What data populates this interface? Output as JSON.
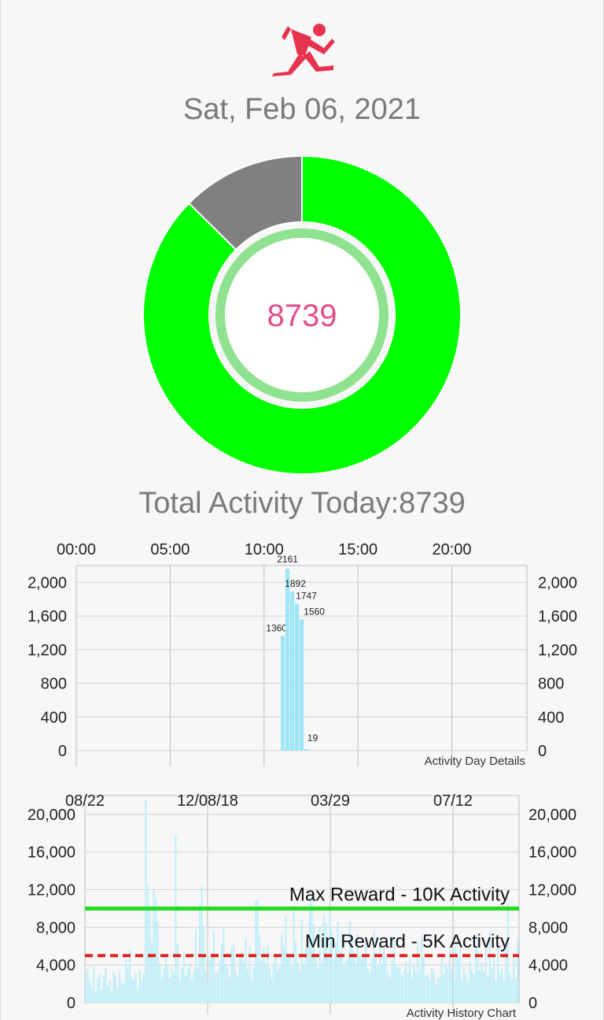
{
  "header": {
    "icon": "runner-icon",
    "date": "Sat, Feb 06, 2021"
  },
  "summary": {
    "steps_today": "8739",
    "total_label": "Total Activity Today:8739",
    "goal_progress_fraction": 0.874,
    "colors": {
      "progress": "#00ff00",
      "remaining": "#808080",
      "value_text": "#e0508a",
      "inner_ring": "#7dde7d"
    }
  },
  "chart_data": [
    {
      "type": "bar",
      "title": "Activity Day Details",
      "x_ticks": [
        "00:00",
        "05:00",
        "10:00",
        "15:00",
        "20:00"
      ],
      "x_tick_hours": [
        0,
        5,
        10,
        15,
        20
      ],
      "xlim": [
        0,
        24
      ],
      "ylim": [
        0,
        2200
      ],
      "y_ticks": [
        0,
        400,
        800,
        1200,
        1600,
        2000
      ],
      "y_tick_labels": [
        "0",
        "400",
        "800",
        "1,200",
        "1,600",
        "2,000"
      ],
      "grid": true,
      "bar_color": "#9ee6f5",
      "bars": [
        {
          "hour": 11.0,
          "value": 1360,
          "label": "1360"
        },
        {
          "hour": 11.25,
          "value": 2161,
          "label": "2161"
        },
        {
          "hour": 11.5,
          "value": 1892,
          "label": "1892"
        },
        {
          "hour": 11.75,
          "value": 1747,
          "label": "1747"
        },
        {
          "hour": 12.0,
          "value": 1560,
          "label": "1560"
        },
        {
          "hour": 12.25,
          "value": 19,
          "label": "19"
        }
      ]
    },
    {
      "type": "bar",
      "title": "Activity History Chart",
      "x_ticks": [
        "08/22",
        "12/08/18",
        "03/29",
        "07/12"
      ],
      "ylim": [
        0,
        22000
      ],
      "y_ticks": [
        0,
        4000,
        8000,
        12000,
        16000,
        20000
      ],
      "y_tick_labels": [
        "0",
        "4,000",
        "8,000",
        "12,000",
        "16,000",
        "20,000"
      ],
      "grid": true,
      "bar_color": "#bfeef8",
      "reference_lines": [
        {
          "label": "Max Reward - 10K Activity",
          "value": 10000,
          "color": "#22dd22",
          "style": "solid"
        },
        {
          "label": "Min Reward - 5K Activity",
          "value": 5000,
          "color": "#dd2222",
          "style": "dashed"
        }
      ],
      "values": [
        3200,
        3600,
        2400,
        1500,
        3800,
        1200,
        2600,
        3100,
        1400,
        2900,
        3700,
        1800,
        2500,
        1200,
        3300,
        2800,
        1600,
        3500,
        2200,
        1900,
        4600,
        3800,
        5600,
        2700,
        2400,
        3100,
        1500,
        3500,
        2300,
        3100,
        21500,
        12500,
        9800,
        6400,
        11900,
        11200,
        8600,
        4200,
        2700,
        3600,
        4800,
        3900,
        2600,
        3800,
        3100,
        17800,
        6200,
        2300,
        3700,
        5400,
        2900,
        3600,
        4200,
        2500,
        3300,
        7800,
        3700,
        10400,
        12500,
        8100,
        3400,
        2200,
        4600,
        5300,
        7600,
        3100,
        3200,
        4400,
        6300,
        7900,
        4100,
        3700,
        2700,
        5900,
        6200,
        3300,
        2900,
        4700,
        5500,
        4300,
        6800,
        3500,
        6000,
        2400,
        3800,
        10800,
        11000,
        7200,
        4400,
        5900,
        4200,
        6100,
        3700,
        2600,
        4300,
        5000,
        3400,
        3900,
        7400,
        5900,
        9100,
        4700,
        5000,
        3800,
        10300,
        6600,
        4300,
        3400,
        8900,
        4100,
        5800,
        6300,
        10600,
        11400,
        8300,
        5100,
        3700,
        8100,
        4200,
        9300,
        8500,
        5000,
        9700,
        7500,
        4600,
        6500,
        8600,
        5400,
        7600,
        3900,
        4300,
        4900,
        8700,
        6700,
        5400,
        4200,
        7300,
        5000,
        4600,
        4800,
        6400,
        3600,
        3200,
        4800,
        7700,
        5300,
        3800,
        6600,
        4100,
        5700,
        4800,
        3300,
        2600,
        4500,
        7100,
        4100,
        3600,
        3800,
        2900,
        3400,
        4300,
        3200,
        5000,
        2700,
        4200,
        3300,
        6400,
        3500,
        7100,
        4800,
        2900,
        3100,
        2400,
        3700,
        3300,
        2000,
        2600,
        2700,
        5200,
        3100,
        4200,
        3500,
        6000,
        3600,
        2500,
        6100,
        4900,
        5800,
        2300,
        3800,
        3100,
        2200,
        4400,
        3500,
        3000,
        5900,
        7200,
        3400,
        4300,
        3300,
        6100,
        2800,
        7600,
        3700,
        5100,
        2400,
        6400,
        3200,
        3600,
        2400,
        6300,
        10600,
        3200,
        2500,
        4700,
        2600,
        6800
      ]
    }
  ]
}
